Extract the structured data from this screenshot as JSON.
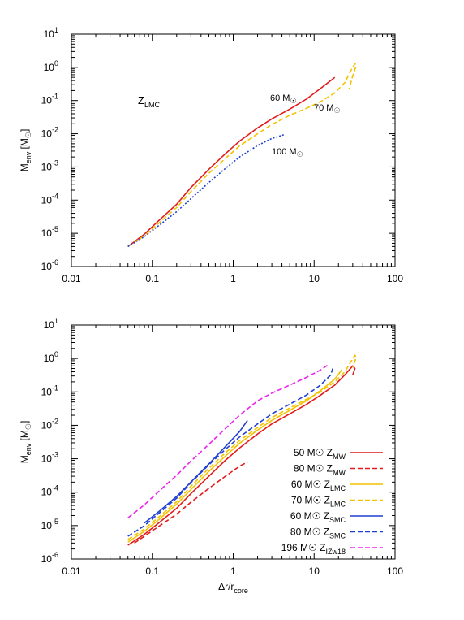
{
  "chart_data": [
    {
      "type": "line",
      "x_scale": "log",
      "y_scale": "log",
      "xlim": [
        0.01,
        100
      ],
      "ylim": [
        1e-06,
        10
      ],
      "x_ticks": [
        "0.01",
        "0.1",
        "1",
        "10",
        "100"
      ],
      "y_ticks": [
        {
          "base": "10",
          "exp": "-6"
        },
        {
          "base": "10",
          "exp": "-5"
        },
        {
          "base": "10",
          "exp": "-4"
        },
        {
          "base": "10",
          "exp": "-3"
        },
        {
          "base": "10",
          "exp": "-2"
        },
        {
          "base": "10",
          "exp": "-1"
        },
        {
          "base": "10",
          "exp": "0"
        },
        {
          "base": "10",
          "exp": "1"
        }
      ],
      "ylabel": {
        "main": "M",
        "sub": "env",
        "unit": "[M",
        "unit_sub": "☉",
        "close": "]"
      },
      "region_label": {
        "main": "Z",
        "sub": "LMC"
      },
      "annotations": [
        {
          "text": "60 M",
          "sun": "☉"
        },
        {
          "text": "70 M",
          "sun": "☉"
        },
        {
          "text": "100 M",
          "sun": "☉"
        }
      ],
      "series": [
        {
          "label": "60 M☉",
          "color": "#e31a1c",
          "dash": "solid",
          "points": [
            [
              0.05,
              4e-06
            ],
            [
              0.08,
              9.5e-06
            ],
            [
              0.12,
              2.4e-05
            ],
            [
              0.2,
              7.5e-05
            ],
            [
              0.3,
              0.00024
            ],
            [
              0.5,
              0.00085
            ],
            [
              0.8,
              0.0025
            ],
            [
              1.2,
              0.006
            ],
            [
              2,
              0.015
            ],
            [
              3,
              0.028
            ],
            [
              5,
              0.055
            ],
            [
              8,
              0.11
            ],
            [
              12,
              0.23
            ],
            [
              18,
              0.5
            ]
          ]
        },
        {
          "label": "70 M☉",
          "color": "#f2c200",
          "dash": "dashed",
          "points": [
            [
              0.05,
              4e-06
            ],
            [
              0.08,
              8.5e-06
            ],
            [
              0.12,
              2e-05
            ],
            [
              0.2,
              6e-05
            ],
            [
              0.3,
              0.00018
            ],
            [
              0.5,
              0.00065
            ],
            [
              0.8,
              0.0018
            ],
            [
              1.2,
              0.0043
            ],
            [
              2,
              0.01
            ],
            [
              3,
              0.019
            ],
            [
              5,
              0.036
            ],
            [
              8,
              0.058
            ],
            [
              12,
              0.092
            ],
            [
              18,
              0.17
            ],
            [
              24,
              0.35
            ],
            [
              28,
              0.75
            ],
            [
              32,
              1.3
            ],
            [
              33,
              1.1
            ],
            [
              30,
              0.55
            ],
            [
              27,
              0.22
            ]
          ]
        },
        {
          "label": "100 M☉",
          "color": "#1f3fd1",
          "dash": "dotted",
          "points": [
            [
              0.05,
              4e-06
            ],
            [
              0.08,
              8e-06
            ],
            [
              0.12,
              1.7e-05
            ],
            [
              0.2,
              4.5e-05
            ],
            [
              0.3,
              0.00011
            ],
            [
              0.5,
              0.00034
            ],
            [
              0.8,
              0.0009
            ],
            [
              1.2,
              0.002
            ],
            [
              2,
              0.0044
            ],
            [
              3,
              0.0072
            ],
            [
              4.2,
              0.0093
            ]
          ]
        }
      ]
    },
    {
      "type": "line",
      "x_scale": "log",
      "y_scale": "log",
      "xlim": [
        0.01,
        100
      ],
      "ylim": [
        1e-06,
        10
      ],
      "x_ticks": [
        "0.01",
        "0.1",
        "1",
        "10",
        "100"
      ],
      "y_ticks": [
        {
          "base": "10",
          "exp": "-6"
        },
        {
          "base": "10",
          "exp": "-5"
        },
        {
          "base": "10",
          "exp": "-4"
        },
        {
          "base": "10",
          "exp": "-3"
        },
        {
          "base": "10",
          "exp": "-2"
        },
        {
          "base": "10",
          "exp": "-1"
        },
        {
          "base": "10",
          "exp": "0"
        },
        {
          "base": "10",
          "exp": "1"
        }
      ],
      "xlabel": {
        "main": "Δr/r",
        "sub": "core"
      },
      "ylabel": {
        "main": "M",
        "sub": "env",
        "unit": "[M",
        "unit_sub": "☉",
        "close": "]"
      },
      "legend_position": "bottom-right",
      "series": [
        {
          "label": "50 M☉ Z",
          "label_sub": "MW",
          "color": "#e31a1c",
          "dash": "solid",
          "points": [
            [
              0.05,
              2.6e-06
            ],
            [
              0.08,
              5.5e-06
            ],
            [
              0.12,
              1.2e-05
            ],
            [
              0.2,
              3.3e-05
            ],
            [
              0.3,
              9e-05
            ],
            [
              0.5,
              0.0003
            ],
            [
              0.8,
              0.0009
            ],
            [
              1.2,
              0.0021
            ],
            [
              2,
              0.0055
            ],
            [
              3,
              0.011
            ],
            [
              5,
              0.022
            ],
            [
              8,
              0.042
            ],
            [
              12,
              0.08
            ],
            [
              18,
              0.16
            ],
            [
              25,
              0.36
            ],
            [
              30,
              0.6
            ],
            [
              32,
              0.5
            ],
            [
              30,
              0.32
            ]
          ]
        },
        {
          "label": "80 M☉ Z",
          "label_sub": "MW",
          "color": "#e31a1c",
          "dash": "dashed",
          "points": [
            [
              0.06,
              3e-06
            ],
            [
              0.1,
              7e-06
            ],
            [
              0.2,
              2.2e-05
            ],
            [
              0.3,
              5e-05
            ],
            [
              0.5,
              0.00013
            ],
            [
              0.8,
              0.0003
            ],
            [
              1.2,
              0.0006
            ],
            [
              1.5,
              0.0008
            ]
          ]
        },
        {
          "label": "60 M☉ Z",
          "label_sub": "LMC",
          "color": "#f2c200",
          "dash": "solid",
          "points": [
            [
              0.05,
              3.2e-06
            ],
            [
              0.08,
              6.8e-06
            ],
            [
              0.12,
              1.5e-05
            ],
            [
              0.2,
              4.4e-05
            ],
            [
              0.3,
              0.00012
            ],
            [
              0.5,
              0.00042
            ],
            [
              0.8,
              0.0012
            ],
            [
              1.2,
              0.0029
            ],
            [
              2,
              0.0072
            ],
            [
              3,
              0.014
            ],
            [
              5,
              0.028
            ],
            [
              8,
              0.054
            ],
            [
              12,
              0.11
            ],
            [
              18,
              0.24
            ],
            [
              22,
              0.46
            ]
          ]
        },
        {
          "label": "70 M☉ Z",
          "label_sub": "LMC",
          "color": "#f2c200",
          "dash": "dashed",
          "points": [
            [
              0.05,
              3.8e-06
            ],
            [
              0.08,
              8e-06
            ],
            [
              0.12,
              1.8e-05
            ],
            [
              0.2,
              5.2e-05
            ],
            [
              0.3,
              0.00015
            ],
            [
              0.5,
              0.00052
            ],
            [
              0.8,
              0.0015
            ],
            [
              1.2,
              0.0035
            ],
            [
              2,
              0.0086
            ],
            [
              3,
              0.017
            ],
            [
              5,
              0.033
            ],
            [
              8,
              0.06
            ],
            [
              12,
              0.1
            ],
            [
              18,
              0.2
            ],
            [
              24,
              0.4
            ],
            [
              28,
              0.75
            ],
            [
              32,
              1.25
            ],
            [
              33,
              1.05
            ],
            [
              30,
              0.55
            ]
          ]
        },
        {
          "label": "60 M☉ Z",
          "label_sub": "SMC",
          "color": "#1f3fd1",
          "dash": "solid",
          "points": [
            [
              0.08,
              1.2e-05
            ],
            [
              0.12,
              2.6e-05
            ],
            [
              0.2,
              7.5e-05
            ],
            [
              0.3,
              0.0002
            ],
            [
              0.5,
              0.0007
            ],
            [
              0.8,
              0.0023
            ],
            [
              1.2,
              0.0065
            ],
            [
              1.5,
              0.014
            ]
          ]
        },
        {
          "label": "80 M☉ Z",
          "label_sub": "SMC",
          "color": "#1f3fd1",
          "dash": "dashed",
          "points": [
            [
              0.05,
              4.8e-06
            ],
            [
              0.08,
              1e-05
            ],
            [
              0.12,
              2.3e-05
            ],
            [
              0.2,
              6.6e-05
            ],
            [
              0.3,
              0.00019
            ],
            [
              0.5,
              0.00066
            ],
            [
              0.8,
              0.0019
            ],
            [
              1.2,
              0.0045
            ],
            [
              2,
              0.011
            ],
            [
              3,
              0.022
            ],
            [
              5,
              0.043
            ],
            [
              8,
              0.08
            ],
            [
              12,
              0.16
            ],
            [
              16,
              0.32
            ],
            [
              17,
              0.5
            ]
          ]
        },
        {
          "label": "196 M☉ Z",
          "label_sub": "IZw18",
          "color": "#ee22ee",
          "dash": "dashed",
          "points": [
            [
              0.05,
              1.7e-05
            ],
            [
              0.08,
              4.2e-05
            ],
            [
              0.12,
              0.000105
            ],
            [
              0.2,
              0.00032
            ],
            [
              0.3,
              0.00085
            ],
            [
              0.5,
              0.0027
            ],
            [
              0.8,
              0.008
            ],
            [
              1.2,
              0.02
            ],
            [
              2,
              0.054
            ],
            [
              3,
              0.092
            ],
            [
              5,
              0.16
            ],
            [
              8,
              0.27
            ],
            [
              12,
              0.45
            ],
            [
              15,
              0.65
            ]
          ]
        }
      ]
    }
  ]
}
